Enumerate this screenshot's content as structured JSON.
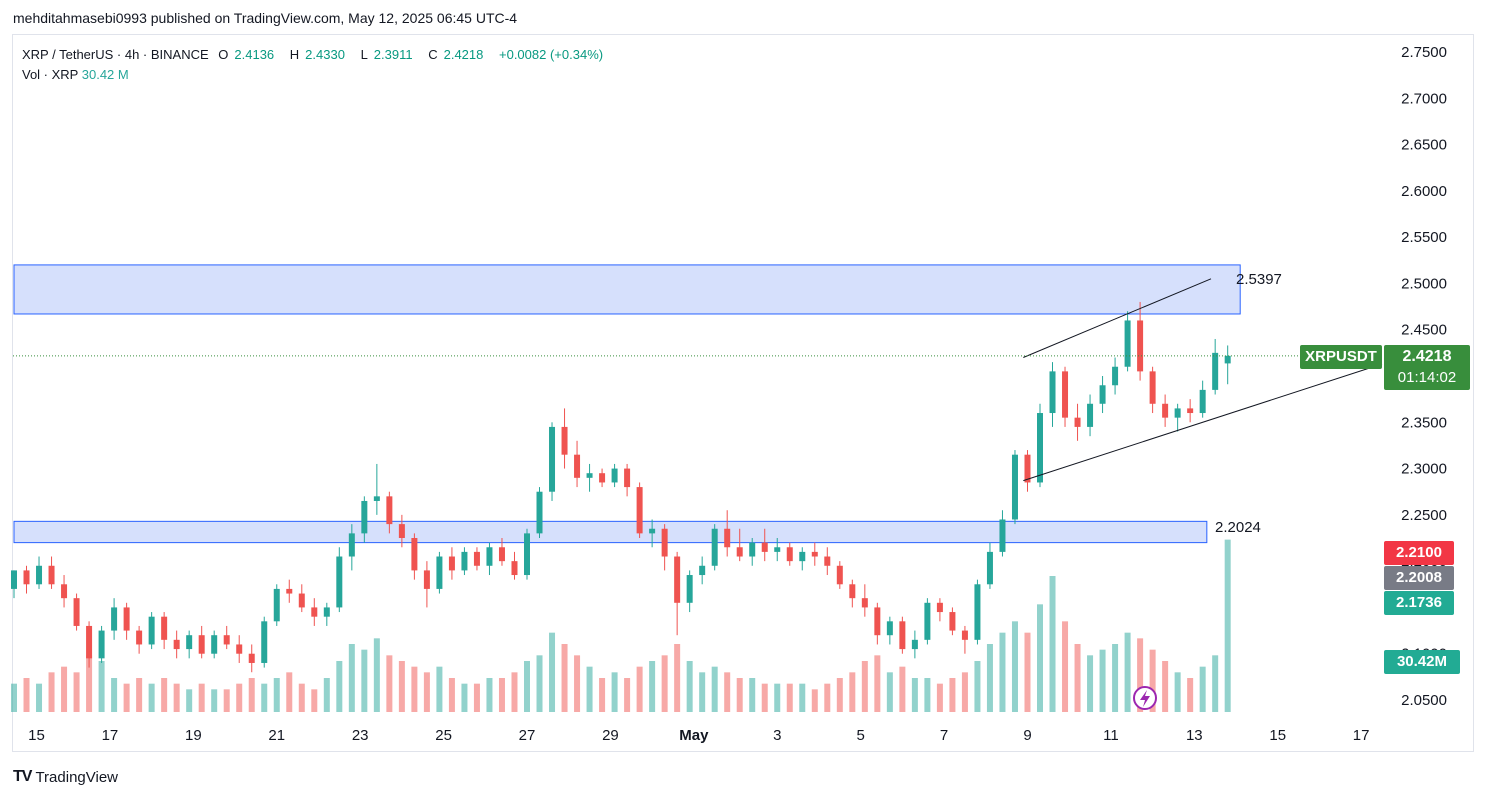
{
  "header": {
    "publish_line": "mehditahmasebi0993 published on TradingView.com, May 12, 2025 06:45 UTC-4"
  },
  "legend": {
    "symbol": "XRP / TetherUS · 4h · BINANCE",
    "o_label": "O",
    "o": "2.4136",
    "h_label": "H",
    "h": "2.4330",
    "l_label": "L",
    "l": "2.3911",
    "c_label": "C",
    "c": "2.4218",
    "change": "+0.0082 (+0.34%)",
    "vol_label": "Vol · XRP",
    "vol": "30.42 M"
  },
  "annotations": {
    "zone_top_label": "2.5397",
    "zone_bottom_label": "2.2024"
  },
  "price_tags": {
    "symbol": "XRPUSDT",
    "last": "2.4218",
    "countdown": "01:14:02",
    "red": "2.2100",
    "gray": "2.2008",
    "green": "2.1736",
    "volume": "30.42M"
  },
  "footer": {
    "logo_text": "TradingView"
  },
  "colors": {
    "up": "#26a69a",
    "down": "#ef5350",
    "zone_fill": "#d6e0fc",
    "zone_stroke": "#2962ff",
    "tag_green": "#388e3c"
  },
  "chart_data": {
    "type": "candlestick",
    "title": "XRP / TetherUS · 4h · BINANCE",
    "ylim": [
      2.03,
      2.77
    ],
    "y_ticks": [
      2.75,
      2.7,
      2.65,
      2.6,
      2.55,
      2.5,
      2.45,
      2.4,
      2.35,
      2.3,
      2.25,
      2.2,
      2.15,
      2.1,
      2.05
    ],
    "y_tick_labels": [
      "2.7500",
      "2.7000",
      "2.6500",
      "2.6000",
      "2.5500",
      "2.5000",
      "2.4500",
      "2.4000",
      "2.3500",
      "2.3000",
      "2.2500",
      "2.2000",
      "2.1500",
      "2.1000",
      "2.0500"
    ],
    "x_tick_labels": [
      "15",
      "17",
      "19",
      "21",
      "23",
      "25",
      "27",
      "29",
      "May",
      "3",
      "5",
      "7",
      "9",
      "11",
      "13",
      "15",
      "17"
    ],
    "x_tick_days": [
      15,
      17,
      19,
      21,
      23,
      25,
      27,
      29,
      31,
      33,
      35,
      37,
      39,
      41,
      43,
      45,
      47
    ],
    "day_range": [
      14.7,
      47.5
    ],
    "zones": [
      {
        "low": 2.467,
        "high": 2.52,
        "start_day": 14.7,
        "end_day": 44.1,
        "label": "2.5397"
      },
      {
        "low": 2.22,
        "high": 2.243,
        "start_day": 14.7,
        "end_day": 43.3,
        "label": "2.2024"
      }
    ],
    "channel": [
      {
        "from": [
          38.9,
          2.42
        ],
        "to": [
          43.4,
          2.505
        ]
      },
      {
        "from": [
          38.9,
          2.287
        ],
        "to": [
          47.5,
          2.413
        ]
      }
    ],
    "last_price": 2.4218,
    "volume_scale_max": 30,
    "candles": [
      {
        "d": 14.7,
        "o": 2.17,
        "h": 2.19,
        "l": 2.16,
        "c": 2.19,
        "v": 5
      },
      {
        "d": 15.0,
        "o": 2.19,
        "h": 2.195,
        "l": 2.165,
        "c": 2.175,
        "v": 6
      },
      {
        "d": 15.3,
        "o": 2.175,
        "h": 2.205,
        "l": 2.17,
        "c": 2.195,
        "v": 5
      },
      {
        "d": 15.6,
        "o": 2.195,
        "h": 2.205,
        "l": 2.17,
        "c": 2.175,
        "v": 7
      },
      {
        "d": 15.9,
        "o": 2.175,
        "h": 2.185,
        "l": 2.15,
        "c": 2.16,
        "v": 8
      },
      {
        "d": 16.2,
        "o": 2.16,
        "h": 2.165,
        "l": 2.125,
        "c": 2.13,
        "v": 7
      },
      {
        "d": 16.5,
        "o": 2.13,
        "h": 2.135,
        "l": 2.085,
        "c": 2.095,
        "v": 10
      },
      {
        "d": 16.8,
        "o": 2.095,
        "h": 2.13,
        "l": 2.09,
        "c": 2.125,
        "v": 9
      },
      {
        "d": 17.1,
        "o": 2.125,
        "h": 2.16,
        "l": 2.115,
        "c": 2.15,
        "v": 6
      },
      {
        "d": 17.4,
        "o": 2.15,
        "h": 2.155,
        "l": 2.115,
        "c": 2.125,
        "v": 5
      },
      {
        "d": 17.7,
        "o": 2.125,
        "h": 2.13,
        "l": 2.1,
        "c": 2.11,
        "v": 6
      },
      {
        "d": 18.0,
        "o": 2.11,
        "h": 2.145,
        "l": 2.105,
        "c": 2.14,
        "v": 5
      },
      {
        "d": 18.3,
        "o": 2.14,
        "h": 2.145,
        "l": 2.105,
        "c": 2.115,
        "v": 6
      },
      {
        "d": 18.6,
        "o": 2.115,
        "h": 2.125,
        "l": 2.095,
        "c": 2.105,
        "v": 5
      },
      {
        "d": 18.9,
        "o": 2.105,
        "h": 2.125,
        "l": 2.095,
        "c": 2.12,
        "v": 4
      },
      {
        "d": 19.2,
        "o": 2.12,
        "h": 2.13,
        "l": 2.095,
        "c": 2.1,
        "v": 5
      },
      {
        "d": 19.5,
        "o": 2.1,
        "h": 2.125,
        "l": 2.095,
        "c": 2.12,
        "v": 4
      },
      {
        "d": 19.8,
        "o": 2.12,
        "h": 2.13,
        "l": 2.105,
        "c": 2.11,
        "v": 4
      },
      {
        "d": 20.1,
        "o": 2.11,
        "h": 2.12,
        "l": 2.09,
        "c": 2.1,
        "v": 5
      },
      {
        "d": 20.4,
        "o": 2.1,
        "h": 2.11,
        "l": 2.08,
        "c": 2.09,
        "v": 6
      },
      {
        "d": 20.7,
        "o": 2.09,
        "h": 2.14,
        "l": 2.085,
        "c": 2.135,
        "v": 5
      },
      {
        "d": 21.0,
        "o": 2.135,
        "h": 2.175,
        "l": 2.13,
        "c": 2.17,
        "v": 6
      },
      {
        "d": 21.3,
        "o": 2.17,
        "h": 2.18,
        "l": 2.155,
        "c": 2.165,
        "v": 7
      },
      {
        "d": 21.6,
        "o": 2.165,
        "h": 2.175,
        "l": 2.145,
        "c": 2.15,
        "v": 5
      },
      {
        "d": 21.9,
        "o": 2.15,
        "h": 2.16,
        "l": 2.13,
        "c": 2.14,
        "v": 4
      },
      {
        "d": 22.2,
        "o": 2.14,
        "h": 2.155,
        "l": 2.13,
        "c": 2.15,
        "v": 6
      },
      {
        "d": 22.5,
        "o": 2.15,
        "h": 2.215,
        "l": 2.145,
        "c": 2.205,
        "v": 9
      },
      {
        "d": 22.8,
        "o": 2.205,
        "h": 2.24,
        "l": 2.19,
        "c": 2.23,
        "v": 12
      },
      {
        "d": 23.1,
        "o": 2.23,
        "h": 2.27,
        "l": 2.22,
        "c": 2.265,
        "v": 11
      },
      {
        "d": 23.4,
        "o": 2.265,
        "h": 2.305,
        "l": 2.25,
        "c": 2.27,
        "v": 13
      },
      {
        "d": 23.7,
        "o": 2.27,
        "h": 2.275,
        "l": 2.23,
        "c": 2.24,
        "v": 10
      },
      {
        "d": 24.0,
        "o": 2.24,
        "h": 2.25,
        "l": 2.215,
        "c": 2.225,
        "v": 9
      },
      {
        "d": 24.3,
        "o": 2.225,
        "h": 2.23,
        "l": 2.18,
        "c": 2.19,
        "v": 8
      },
      {
        "d": 24.6,
        "o": 2.19,
        "h": 2.2,
        "l": 2.15,
        "c": 2.17,
        "v": 7
      },
      {
        "d": 24.9,
        "o": 2.17,
        "h": 2.21,
        "l": 2.165,
        "c": 2.205,
        "v": 8
      },
      {
        "d": 25.2,
        "o": 2.205,
        "h": 2.215,
        "l": 2.18,
        "c": 2.19,
        "v": 6
      },
      {
        "d": 25.5,
        "o": 2.19,
        "h": 2.215,
        "l": 2.185,
        "c": 2.21,
        "v": 5
      },
      {
        "d": 25.8,
        "o": 2.21,
        "h": 2.215,
        "l": 2.19,
        "c": 2.195,
        "v": 5
      },
      {
        "d": 26.1,
        "o": 2.195,
        "h": 2.22,
        "l": 2.185,
        "c": 2.215,
        "v": 6
      },
      {
        "d": 26.4,
        "o": 2.215,
        "h": 2.225,
        "l": 2.195,
        "c": 2.2,
        "v": 6
      },
      {
        "d": 26.7,
        "o": 2.2,
        "h": 2.21,
        "l": 2.18,
        "c": 2.185,
        "v": 7
      },
      {
        "d": 27.0,
        "o": 2.185,
        "h": 2.235,
        "l": 2.18,
        "c": 2.23,
        "v": 9
      },
      {
        "d": 27.3,
        "o": 2.23,
        "h": 2.28,
        "l": 2.225,
        "c": 2.275,
        "v": 10
      },
      {
        "d": 27.6,
        "o": 2.275,
        "h": 2.35,
        "l": 2.265,
        "c": 2.345,
        "v": 14
      },
      {
        "d": 27.9,
        "o": 2.345,
        "h": 2.365,
        "l": 2.3,
        "c": 2.315,
        "v": 12
      },
      {
        "d": 28.2,
        "o": 2.315,
        "h": 2.33,
        "l": 2.28,
        "c": 2.29,
        "v": 10
      },
      {
        "d": 28.5,
        "o": 2.29,
        "h": 2.305,
        "l": 2.275,
        "c": 2.295,
        "v": 8
      },
      {
        "d": 28.8,
        "o": 2.295,
        "h": 2.3,
        "l": 2.28,
        "c": 2.285,
        "v": 6
      },
      {
        "d": 29.1,
        "o": 2.285,
        "h": 2.305,
        "l": 2.28,
        "c": 2.3,
        "v": 7
      },
      {
        "d": 29.4,
        "o": 2.3,
        "h": 2.305,
        "l": 2.27,
        "c": 2.28,
        "v": 6
      },
      {
        "d": 29.7,
        "o": 2.28,
        "h": 2.285,
        "l": 2.225,
        "c": 2.23,
        "v": 8
      },
      {
        "d": 30.0,
        "o": 2.23,
        "h": 2.245,
        "l": 2.215,
        "c": 2.235,
        "v": 9
      },
      {
        "d": 30.3,
        "o": 2.235,
        "h": 2.24,
        "l": 2.19,
        "c": 2.205,
        "v": 10
      },
      {
        "d": 30.6,
        "o": 2.205,
        "h": 2.21,
        "l": 2.12,
        "c": 2.155,
        "v": 12
      },
      {
        "d": 30.9,
        "o": 2.155,
        "h": 2.19,
        "l": 2.145,
        "c": 2.185,
        "v": 9
      },
      {
        "d": 31.2,
        "o": 2.185,
        "h": 2.205,
        "l": 2.175,
        "c": 2.195,
        "v": 7
      },
      {
        "d": 31.5,
        "o": 2.195,
        "h": 2.24,
        "l": 2.19,
        "c": 2.235,
        "v": 8
      },
      {
        "d": 31.8,
        "o": 2.235,
        "h": 2.255,
        "l": 2.205,
        "c": 2.215,
        "v": 7
      },
      {
        "d": 32.1,
        "o": 2.215,
        "h": 2.235,
        "l": 2.2,
        "c": 2.205,
        "v": 6
      },
      {
        "d": 32.4,
        "o": 2.205,
        "h": 2.225,
        "l": 2.195,
        "c": 2.22,
        "v": 6
      },
      {
        "d": 32.7,
        "o": 2.22,
        "h": 2.235,
        "l": 2.2,
        "c": 2.21,
        "v": 5
      },
      {
        "d": 33.0,
        "o": 2.21,
        "h": 2.225,
        "l": 2.2,
        "c": 2.215,
        "v": 5
      },
      {
        "d": 33.3,
        "o": 2.215,
        "h": 2.22,
        "l": 2.195,
        "c": 2.2,
        "v": 5
      },
      {
        "d": 33.6,
        "o": 2.2,
        "h": 2.215,
        "l": 2.19,
        "c": 2.21,
        "v": 5
      },
      {
        "d": 33.9,
        "o": 2.21,
        "h": 2.22,
        "l": 2.195,
        "c": 2.205,
        "v": 4
      },
      {
        "d": 34.2,
        "o": 2.205,
        "h": 2.215,
        "l": 2.185,
        "c": 2.195,
        "v": 5
      },
      {
        "d": 34.5,
        "o": 2.195,
        "h": 2.2,
        "l": 2.17,
        "c": 2.175,
        "v": 6
      },
      {
        "d": 34.8,
        "o": 2.175,
        "h": 2.18,
        "l": 2.15,
        "c": 2.16,
        "v": 7
      },
      {
        "d": 35.1,
        "o": 2.16,
        "h": 2.175,
        "l": 2.14,
        "c": 2.15,
        "v": 9
      },
      {
        "d": 35.4,
        "o": 2.15,
        "h": 2.155,
        "l": 2.11,
        "c": 2.12,
        "v": 10
      },
      {
        "d": 35.7,
        "o": 2.12,
        "h": 2.14,
        "l": 2.11,
        "c": 2.135,
        "v": 7
      },
      {
        "d": 36.0,
        "o": 2.135,
        "h": 2.14,
        "l": 2.1,
        "c": 2.105,
        "v": 8
      },
      {
        "d": 36.3,
        "o": 2.105,
        "h": 2.125,
        "l": 2.095,
        "c": 2.115,
        "v": 6
      },
      {
        "d": 36.6,
        "o": 2.115,
        "h": 2.16,
        "l": 2.11,
        "c": 2.155,
        "v": 6
      },
      {
        "d": 36.9,
        "o": 2.155,
        "h": 2.16,
        "l": 2.135,
        "c": 2.145,
        "v": 5
      },
      {
        "d": 37.2,
        "o": 2.145,
        "h": 2.15,
        "l": 2.12,
        "c": 2.125,
        "v": 6
      },
      {
        "d": 37.5,
        "o": 2.125,
        "h": 2.13,
        "l": 2.1,
        "c": 2.115,
        "v": 7
      },
      {
        "d": 37.8,
        "o": 2.115,
        "h": 2.18,
        "l": 2.11,
        "c": 2.175,
        "v": 9
      },
      {
        "d": 38.1,
        "o": 2.175,
        "h": 2.22,
        "l": 2.17,
        "c": 2.21,
        "v": 12
      },
      {
        "d": 38.4,
        "o": 2.21,
        "h": 2.255,
        "l": 2.205,
        "c": 2.245,
        "v": 14
      },
      {
        "d": 38.7,
        "o": 2.245,
        "h": 2.32,
        "l": 2.24,
        "c": 2.315,
        "v": 16
      },
      {
        "d": 39.0,
        "o": 2.315,
        "h": 2.32,
        "l": 2.275,
        "c": 2.285,
        "v": 14
      },
      {
        "d": 39.3,
        "o": 2.285,
        "h": 2.37,
        "l": 2.28,
        "c": 2.36,
        "v": 19
      },
      {
        "d": 39.6,
        "o": 2.36,
        "h": 2.415,
        "l": 2.345,
        "c": 2.405,
        "v": 24
      },
      {
        "d": 39.9,
        "o": 2.405,
        "h": 2.41,
        "l": 2.345,
        "c": 2.355,
        "v": 16
      },
      {
        "d": 40.2,
        "o": 2.355,
        "h": 2.37,
        "l": 2.33,
        "c": 2.345,
        "v": 12
      },
      {
        "d": 40.5,
        "o": 2.345,
        "h": 2.38,
        "l": 2.335,
        "c": 2.37,
        "v": 10
      },
      {
        "d": 40.8,
        "o": 2.37,
        "h": 2.4,
        "l": 2.36,
        "c": 2.39,
        "v": 11
      },
      {
        "d": 41.1,
        "o": 2.39,
        "h": 2.42,
        "l": 2.38,
        "c": 2.41,
        "v": 12
      },
      {
        "d": 41.4,
        "o": 2.41,
        "h": 2.47,
        "l": 2.405,
        "c": 2.46,
        "v": 14
      },
      {
        "d": 41.7,
        "o": 2.46,
        "h": 2.48,
        "l": 2.395,
        "c": 2.405,
        "v": 13
      },
      {
        "d": 42.0,
        "o": 2.405,
        "h": 2.41,
        "l": 2.36,
        "c": 2.37,
        "v": 11
      },
      {
        "d": 42.3,
        "o": 2.37,
        "h": 2.38,
        "l": 2.345,
        "c": 2.355,
        "v": 9
      },
      {
        "d": 42.6,
        "o": 2.355,
        "h": 2.37,
        "l": 2.34,
        "c": 2.365,
        "v": 7
      },
      {
        "d": 42.9,
        "o": 2.365,
        "h": 2.375,
        "l": 2.35,
        "c": 2.36,
        "v": 6
      },
      {
        "d": 43.2,
        "o": 2.36,
        "h": 2.395,
        "l": 2.355,
        "c": 2.385,
        "v": 8
      },
      {
        "d": 43.5,
        "o": 2.385,
        "h": 2.44,
        "l": 2.38,
        "c": 2.425,
        "v": 10
      },
      {
        "d": 43.8,
        "o": 2.4136,
        "h": 2.433,
        "l": 2.3911,
        "c": 2.4218,
        "v": 30.42
      }
    ]
  }
}
